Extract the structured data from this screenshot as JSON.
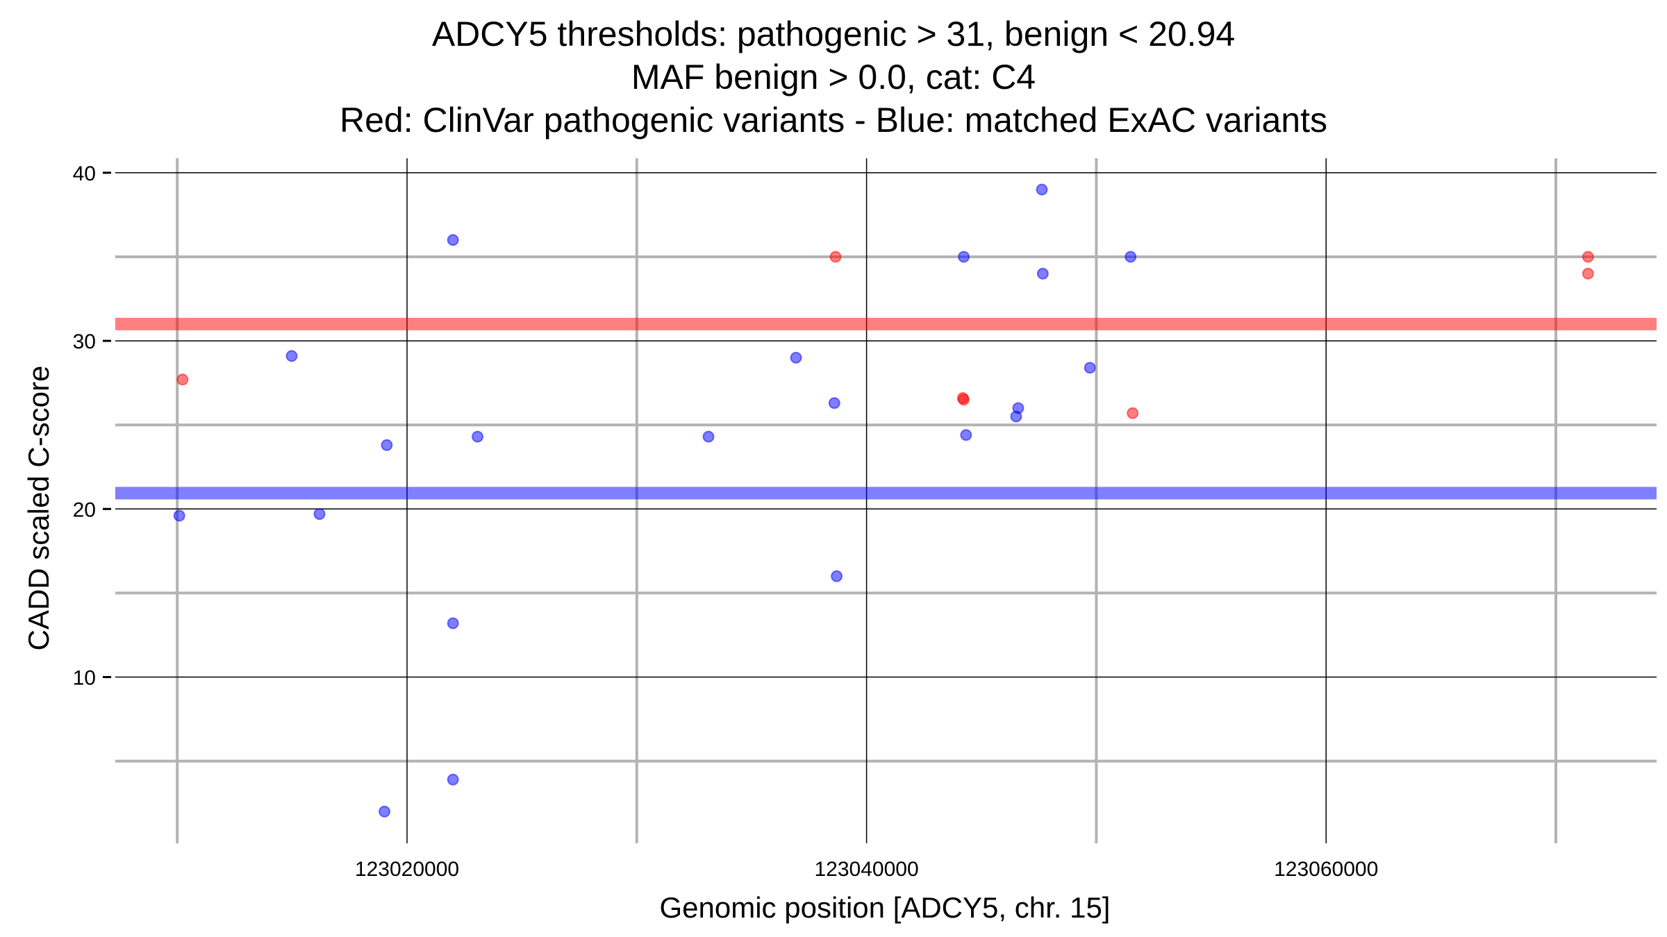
{
  "chart_data": {
    "type": "scatter",
    "title": [
      "ADCY5 thresholds: pathogenic > 31, benign < 20.94",
      "MAF benign > 0.0, cat: C4",
      "Red: ClinVar pathogenic variants - Blue: matched ExAC variants"
    ],
    "xlabel": "Genomic position [ADCY5, chr. 15]",
    "ylabel": "CADD scaled C-score",
    "xlim": [
      123006000,
      123074000
    ],
    "ylim": [
      0,
      41
    ],
    "xticks": [
      123020000,
      123040000,
      123060000
    ],
    "xtick_labels": [
      "123020000",
      "123040000",
      "123060000"
    ],
    "yticks": [
      10,
      20,
      30,
      40
    ],
    "ytick_labels": [
      "10",
      "20",
      "30",
      "40"
    ],
    "thresholds": [
      {
        "name": "pathogenic",
        "value": 31,
        "color": "#ff0000"
      },
      {
        "name": "benign",
        "value": 20.94,
        "color": "#0000ff"
      }
    ],
    "series": [
      {
        "name": "ClinVar pathogenic variants",
        "color": "#ff0000",
        "points": [
          [
            123010230,
            27.7
          ],
          [
            123038650,
            35.0
          ],
          [
            123044190,
            26.6
          ],
          [
            123044230,
            26.5
          ],
          [
            123051580,
            25.7
          ],
          [
            123071400,
            35.0
          ],
          [
            123071400,
            34.0
          ]
        ]
      },
      {
        "name": "matched ExAC variants",
        "color": "#0000ff",
        "points": [
          [
            123010090,
            19.6
          ],
          [
            123014980,
            29.1
          ],
          [
            123016190,
            19.7
          ],
          [
            123019120,
            23.8
          ],
          [
            123019020,
            2.0
          ],
          [
            123022000,
            36.0
          ],
          [
            123022000,
            13.2
          ],
          [
            123022000,
            3.9
          ],
          [
            123023070,
            24.3
          ],
          [
            123033120,
            24.3
          ],
          [
            123036930,
            29.0
          ],
          [
            123038600,
            26.3
          ],
          [
            123038700,
            16.0
          ],
          [
            123044230,
            35.0
          ],
          [
            123044330,
            24.4
          ],
          [
            123046510,
            25.5
          ],
          [
            123046600,
            26.0
          ],
          [
            123047630,
            39.0
          ],
          [
            123047670,
            34.0
          ],
          [
            123049720,
            28.4
          ],
          [
            123051490,
            35.0
          ]
        ]
      }
    ]
  }
}
